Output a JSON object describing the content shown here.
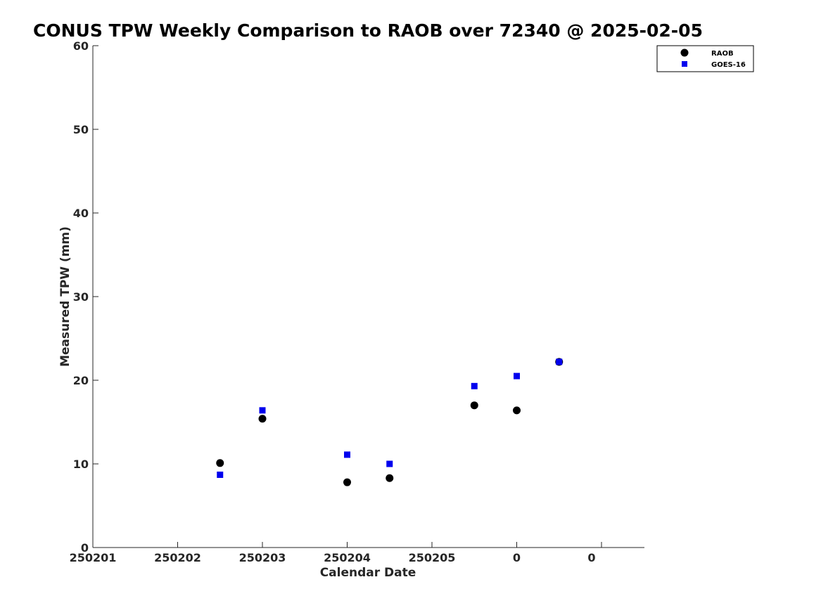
{
  "chart_data": {
    "type": "scatter",
    "title": "CONUS TPW Weekly Comparison to RAOB over 72340 @ 2025-02-05",
    "xlabel": "Calendar Date",
    "ylabel": "Measured TPW (mm)",
    "xlim": [
      0,
      6.5
    ],
    "ylim": [
      0,
      60
    ],
    "grid": false,
    "legend_position": "top-right",
    "x_ticks": [
      {
        "value": 0,
        "label": "250201"
      },
      {
        "value": 1,
        "label": "250202"
      },
      {
        "value": 2,
        "label": "250203"
      },
      {
        "value": 3,
        "label": "250204"
      },
      {
        "value": 4,
        "label": "250205"
      },
      {
        "value": 5,
        "label": "0"
      },
      {
        "value": 6,
        "label": "0"
      }
    ],
    "y_ticks": [
      {
        "value": 0,
        "label": "0"
      },
      {
        "value": 10,
        "label": "10"
      },
      {
        "value": 20,
        "label": "20"
      },
      {
        "value": 30,
        "label": "30"
      },
      {
        "value": 40,
        "label": "40"
      },
      {
        "value": 50,
        "label": "50"
      },
      {
        "value": 60,
        "label": "60"
      }
    ],
    "series": [
      {
        "name": "RAOB",
        "marker": "circle",
        "color": "#000000",
        "points": [
          {
            "x": 1.5,
            "y": 10.1
          },
          {
            "x": 2.0,
            "y": 15.4
          },
          {
            "x": 3.0,
            "y": 7.8
          },
          {
            "x": 3.5,
            "y": 8.3
          },
          {
            "x": 4.5,
            "y": 17.0
          },
          {
            "x": 5.0,
            "y": 16.4
          },
          {
            "x": 5.5,
            "y": 22.2
          }
        ]
      },
      {
        "name": "GOES-16",
        "marker": "square",
        "color": "#0000ee",
        "points": [
          {
            "x": 1.5,
            "y": 8.7
          },
          {
            "x": 2.0,
            "y": 16.4
          },
          {
            "x": 3.0,
            "y": 11.1
          },
          {
            "x": 3.5,
            "y": 10.0
          },
          {
            "x": 4.5,
            "y": 19.3
          },
          {
            "x": 5.0,
            "y": 20.5
          },
          {
            "x": 5.5,
            "y": 22.2
          }
        ]
      }
    ]
  }
}
